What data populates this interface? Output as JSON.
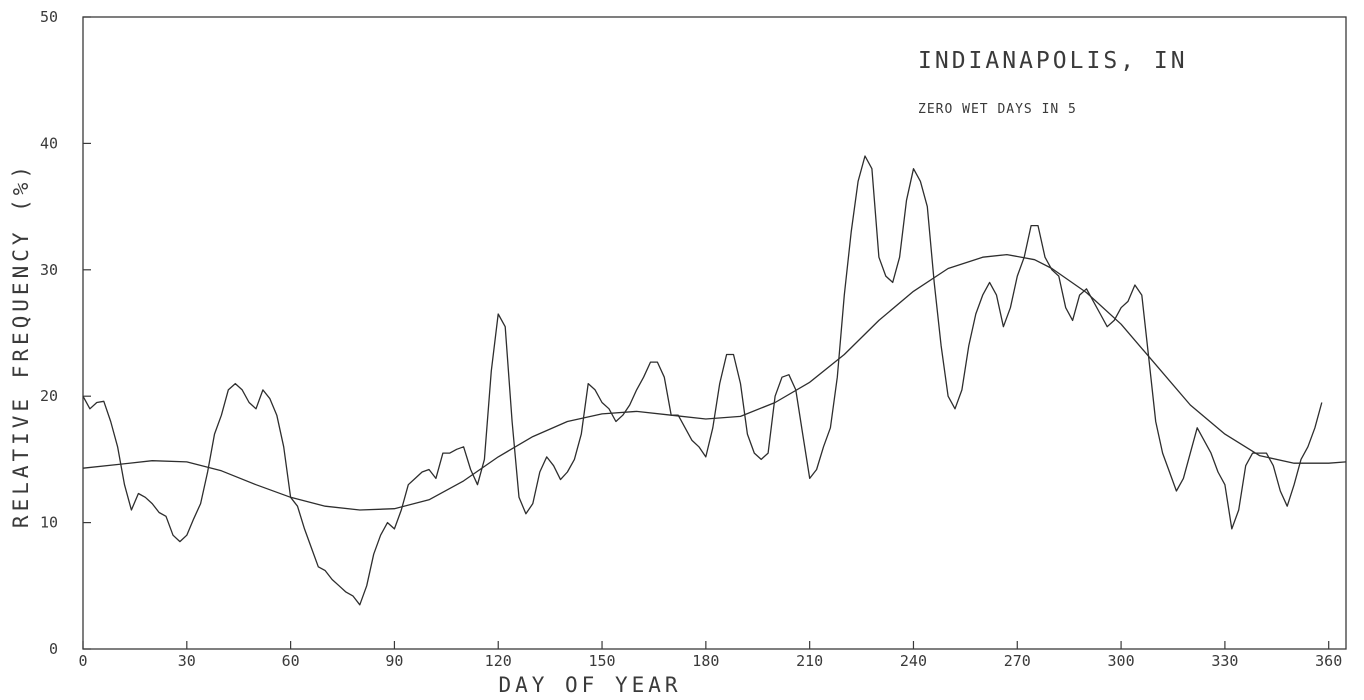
{
  "chart_data": {
    "type": "line",
    "title": "INDIANAPOLIS, IN",
    "subtitle": "ZERO WET DAYS IN 5",
    "xlabel": "DAY OF YEAR",
    "ylabel": "RELATIVE FREQUENCY (%)",
    "xlim": [
      0,
      365
    ],
    "ylim": [
      0,
      50
    ],
    "xticks": [
      0,
      30,
      60,
      90,
      120,
      150,
      180,
      210,
      240,
      270,
      300,
      330,
      360
    ],
    "yticks": [
      0,
      10,
      20,
      30,
      40,
      50
    ],
    "grid": false,
    "colors": {
      "line": "#2e2e2e",
      "text": "#3a3a3a",
      "frame": "#3a3a3a"
    },
    "series": [
      {
        "values": [
          [
            0,
            20
          ],
          [
            2,
            19
          ],
          [
            4,
            19.5
          ],
          [
            6,
            19.6
          ],
          [
            8,
            18
          ],
          [
            10,
            16
          ],
          [
            12,
            13
          ],
          [
            14,
            11
          ],
          [
            16,
            12.3
          ],
          [
            18,
            12
          ],
          [
            20,
            11.5
          ],
          [
            22,
            10.8
          ],
          [
            24,
            10.5
          ],
          [
            26,
            9
          ],
          [
            28,
            8.5
          ],
          [
            30,
            9
          ],
          [
            32,
            10.3
          ],
          [
            34,
            11.5
          ],
          [
            36,
            14
          ],
          [
            38,
            17
          ],
          [
            40,
            18.5
          ],
          [
            42,
            20.5
          ],
          [
            44,
            21
          ],
          [
            46,
            20.5
          ],
          [
            48,
            19.5
          ],
          [
            50,
            19
          ],
          [
            52,
            20.5
          ],
          [
            54,
            19.8
          ],
          [
            56,
            18.5
          ],
          [
            58,
            16
          ],
          [
            60,
            12
          ],
          [
            62,
            11.3
          ],
          [
            64,
            9.5
          ],
          [
            66,
            8
          ],
          [
            68,
            6.5
          ],
          [
            70,
            6.2
          ],
          [
            72,
            5.5
          ],
          [
            74,
            5
          ],
          [
            76,
            4.5
          ],
          [
            78,
            4.2
          ],
          [
            80,
            3.5
          ],
          [
            82,
            5
          ],
          [
            84,
            7.5
          ],
          [
            86,
            9
          ],
          [
            88,
            10
          ],
          [
            90,
            9.5
          ],
          [
            92,
            11
          ],
          [
            94,
            13
          ],
          [
            96,
            13.5
          ],
          [
            98,
            14
          ],
          [
            100,
            14.2
          ],
          [
            102,
            13.5
          ],
          [
            104,
            15.5
          ],
          [
            106,
            15.5
          ],
          [
            108,
            15.8
          ],
          [
            110,
            16
          ],
          [
            112,
            14.2
          ],
          [
            114,
            13
          ],
          [
            116,
            15
          ],
          [
            118,
            22
          ],
          [
            120,
            26.5
          ],
          [
            122,
            25.5
          ],
          [
            124,
            18
          ],
          [
            126,
            12
          ],
          [
            128,
            10.7
          ],
          [
            130,
            11.5
          ],
          [
            132,
            14
          ],
          [
            134,
            15.2
          ],
          [
            136,
            14.5
          ],
          [
            138,
            13.4
          ],
          [
            140,
            14
          ],
          [
            142,
            15
          ],
          [
            144,
            17
          ],
          [
            146,
            21
          ],
          [
            148,
            20.5
          ],
          [
            150,
            19.5
          ],
          [
            152,
            19
          ],
          [
            154,
            18
          ],
          [
            156,
            18.5
          ],
          [
            158,
            19.3
          ],
          [
            160,
            20.5
          ],
          [
            162,
            21.5
          ],
          [
            164,
            22.7
          ],
          [
            166,
            22.7
          ],
          [
            168,
            21.5
          ],
          [
            170,
            18.5
          ],
          [
            172,
            18.5
          ],
          [
            174,
            17.5
          ],
          [
            176,
            16.5
          ],
          [
            178,
            16
          ],
          [
            180,
            15.2
          ],
          [
            182,
            17.5
          ],
          [
            184,
            21
          ],
          [
            186,
            23.3
          ],
          [
            188,
            23.3
          ],
          [
            190,
            21
          ],
          [
            192,
            17
          ],
          [
            194,
            15.5
          ],
          [
            196,
            15
          ],
          [
            198,
            15.5
          ],
          [
            200,
            20
          ],
          [
            202,
            21.5
          ],
          [
            204,
            21.7
          ],
          [
            206,
            20.5
          ],
          [
            208,
            17
          ],
          [
            210,
            13.5
          ],
          [
            212,
            14.2
          ],
          [
            214,
            16
          ],
          [
            216,
            17.5
          ],
          [
            218,
            21.5
          ],
          [
            220,
            28
          ],
          [
            222,
            33
          ],
          [
            224,
            37
          ],
          [
            226,
            39
          ],
          [
            228,
            38
          ],
          [
            230,
            31
          ],
          [
            232,
            29.5
          ],
          [
            234,
            29
          ],
          [
            236,
            31
          ],
          [
            238,
            35.5
          ],
          [
            240,
            38
          ],
          [
            242,
            37
          ],
          [
            244,
            35
          ],
          [
            246,
            29
          ],
          [
            248,
            24
          ],
          [
            250,
            20
          ],
          [
            252,
            19
          ],
          [
            254,
            20.5
          ],
          [
            256,
            24
          ],
          [
            258,
            26.5
          ],
          [
            260,
            28
          ],
          [
            262,
            29
          ],
          [
            264,
            28
          ],
          [
            266,
            25.5
          ],
          [
            268,
            27
          ],
          [
            270,
            29.5
          ],
          [
            272,
            31
          ],
          [
            274,
            33.5
          ],
          [
            276,
            33.5
          ],
          [
            278,
            31
          ],
          [
            280,
            30
          ],
          [
            282,
            29.5
          ],
          [
            284,
            27
          ],
          [
            286,
            26
          ],
          [
            288,
            28
          ],
          [
            290,
            28.5
          ],
          [
            292,
            27.5
          ],
          [
            294,
            26.5
          ],
          [
            296,
            25.5
          ],
          [
            298,
            26
          ],
          [
            300,
            27
          ],
          [
            302,
            27.5
          ],
          [
            304,
            28.8
          ],
          [
            306,
            28
          ],
          [
            308,
            23
          ],
          [
            310,
            18
          ],
          [
            312,
            15.5
          ],
          [
            314,
            14
          ],
          [
            316,
            12.5
          ],
          [
            318,
            13.5
          ],
          [
            320,
            15.5
          ],
          [
            322,
            17.5
          ],
          [
            324,
            16.5
          ],
          [
            326,
            15.5
          ],
          [
            328,
            14
          ],
          [
            330,
            13
          ],
          [
            332,
            9.5
          ],
          [
            334,
            11
          ],
          [
            336,
            14.5
          ],
          [
            338,
            15.5
          ],
          [
            340,
            15.5
          ],
          [
            342,
            15.5
          ],
          [
            344,
            14.5
          ],
          [
            346,
            12.5
          ],
          [
            348,
            11.3
          ],
          [
            350,
            13
          ],
          [
            352,
            15
          ],
          [
            354,
            16
          ],
          [
            356,
            17.5
          ],
          [
            358,
            19.5
          ]
        ]
      },
      {
        "values": [
          [
            0,
            14.3
          ],
          [
            10,
            14.6
          ],
          [
            20,
            14.9
          ],
          [
            30,
            14.8
          ],
          [
            40,
            14.1
          ],
          [
            50,
            13
          ],
          [
            60,
            12
          ],
          [
            70,
            11.3
          ],
          [
            80,
            11
          ],
          [
            90,
            11.1
          ],
          [
            100,
            11.8
          ],
          [
            110,
            13.3
          ],
          [
            120,
            15.2
          ],
          [
            130,
            16.8
          ],
          [
            140,
            18
          ],
          [
            150,
            18.6
          ],
          [
            160,
            18.8
          ],
          [
            170,
            18.5
          ],
          [
            180,
            18.2
          ],
          [
            190,
            18.4
          ],
          [
            200,
            19.5
          ],
          [
            210,
            21.1
          ],
          [
            220,
            23.3
          ],
          [
            230,
            26
          ],
          [
            240,
            28.3
          ],
          [
            250,
            30.1
          ],
          [
            260,
            31
          ],
          [
            267,
            31.2
          ],
          [
            275,
            30.8
          ],
          [
            280,
            30.1
          ],
          [
            290,
            28.2
          ],
          [
            300,
            25.7
          ],
          [
            310,
            22.5
          ],
          [
            320,
            19.3
          ],
          [
            330,
            17
          ],
          [
            340,
            15.3
          ],
          [
            350,
            14.7
          ],
          [
            360,
            14.7
          ],
          [
            365,
            14.8
          ]
        ]
      }
    ]
  }
}
